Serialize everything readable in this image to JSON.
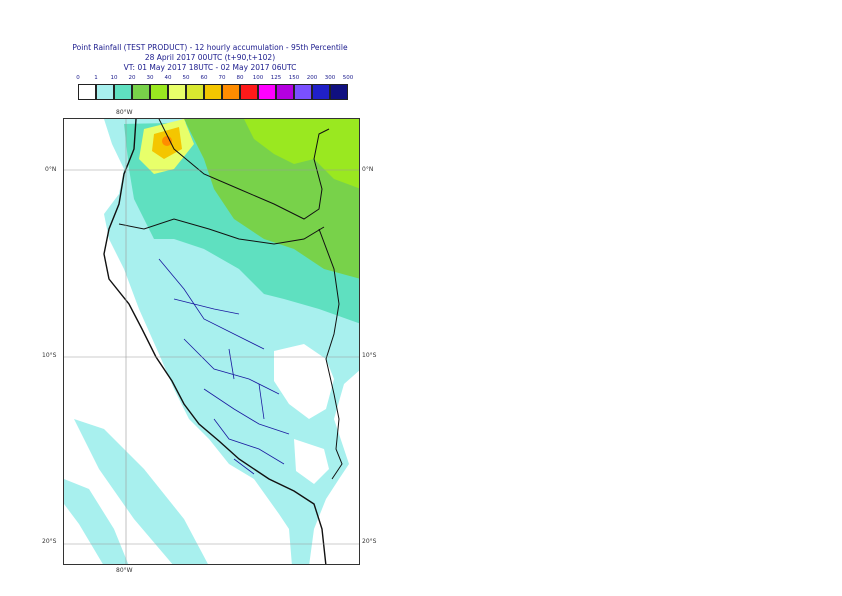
{
  "title": {
    "line1": "Point Rainfall (TEST PRODUCT) - 12 hourly accumulation - 95th Percentile",
    "line2": "28 April 2017 00UTC (t+90,t+102)",
    "line3": "VT: 01 May 2017 18UTC - 02 May 2017 06UTC"
  },
  "legend": {
    "ticks": [
      "0",
      "1",
      "10",
      "20",
      "30",
      "40",
      "50",
      "60",
      "70",
      "80",
      "100",
      "125",
      "150",
      "200",
      "300",
      "500"
    ],
    "colors": [
      "#ffffff",
      "#a8f0ee",
      "#5fe0c0",
      "#78d24a",
      "#9ae820",
      "#e8ff6a",
      "#d8e830",
      "#f4c600",
      "#ff8c00",
      "#ff1a1a",
      "#ff00ff",
      "#b400e0",
      "#7a50ff",
      "#2020c8",
      "#101080"
    ]
  },
  "axes": {
    "lon_top": "80°W",
    "lon_bottom": "80°W",
    "lat_0_left": "0°N",
    "lat_0_right": "0°N",
    "lat_10_left": "10°S",
    "lat_10_right": "10°S",
    "lat_20_left": "20°S",
    "lat_20_right": "20°S"
  }
}
